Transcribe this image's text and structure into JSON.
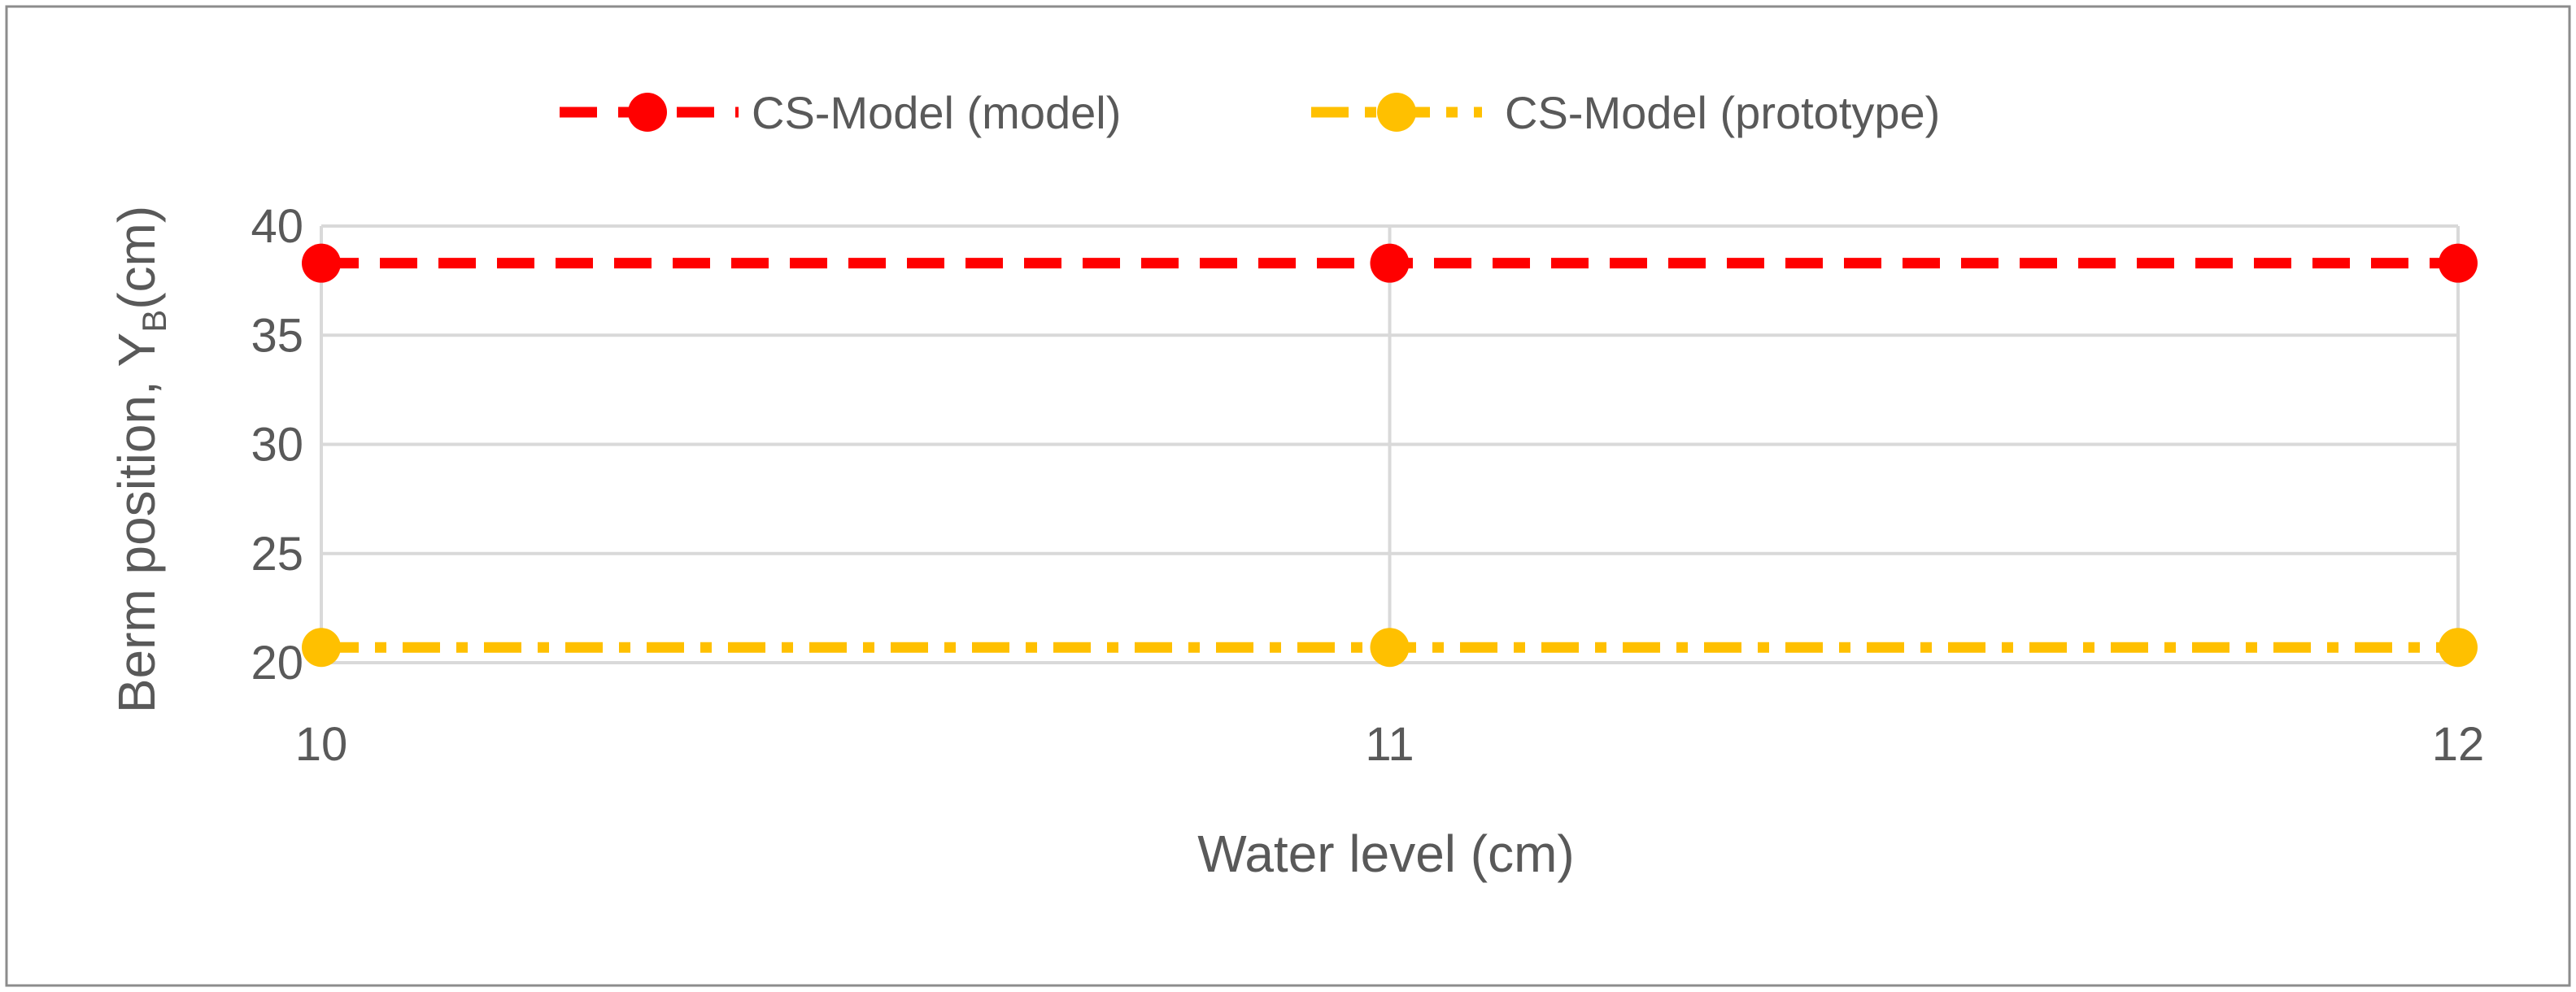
{
  "chart_data": {
    "type": "line",
    "title": "",
    "xlabel": "Water level (cm)",
    "ylabel": {
      "main": "Berm position, Y",
      "subscript": "B",
      "unit": "(cm)"
    },
    "x": [
      10,
      11,
      12
    ],
    "xticks": [
      "10",
      "11",
      "12"
    ],
    "yticks": [
      "20",
      "25",
      "30",
      "35",
      "40"
    ],
    "xlim": [
      10,
      12
    ],
    "ylim": [
      20,
      40
    ],
    "grid": true,
    "legend_position": "top-center",
    "series": [
      {
        "name": "CS-Model (model)",
        "values": [
          38.3,
          38.3,
          38.3
        ],
        "color": "#FF0000",
        "line_style": "dashed",
        "marker": "circle"
      },
      {
        "name": "CS-Model (prototype)",
        "values": [
          20.7,
          20.7,
          20.7
        ],
        "color": "#FFC000",
        "line_style": "dash-dot",
        "marker": "circle"
      }
    ]
  }
}
